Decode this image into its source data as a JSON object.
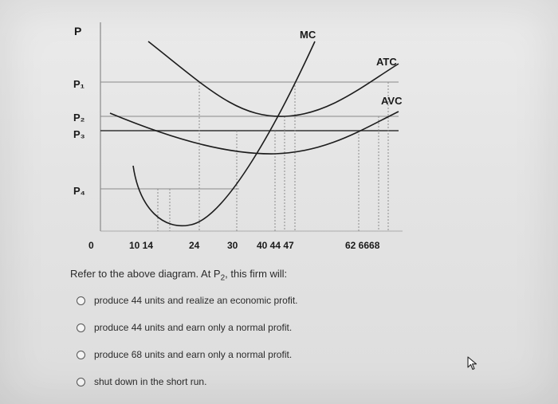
{
  "chart_data": {
    "type": "line",
    "ylabel": "P",
    "price_labels": [
      "P₁",
      "P₂",
      "P₃",
      "P₄"
    ],
    "x_ticks": [
      0,
      10,
      14,
      24,
      30,
      40,
      44,
      47,
      62,
      66,
      68
    ],
    "x_tick_labels": [
      "0",
      "10 14",
      "24",
      "30",
      "40 44 47",
      "62 6668"
    ],
    "series": [
      {
        "name": "MC"
      },
      {
        "name": "ATC"
      },
      {
        "name": "AVC"
      }
    ],
    "grid": "dotted verticals at quantity ticks"
  },
  "question": {
    "prefix": "Refer to the above diagram. At P",
    "subscript": "2",
    "suffix": ", this firm will:"
  },
  "options": [
    "produce 44 units and realize an economic profit.",
    "produce 44 units and earn only a normal profit.",
    "produce 68 units and earn only a normal profit.",
    "shut down in the short run."
  ]
}
